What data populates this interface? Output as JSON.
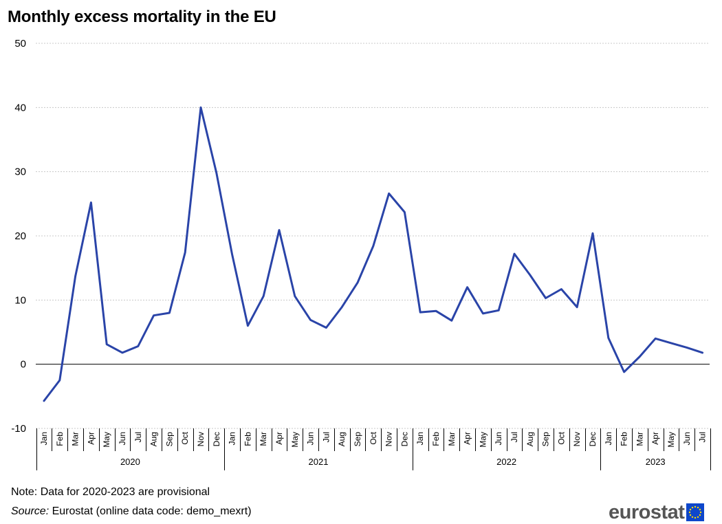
{
  "title": "Monthly excess mortality in the EU",
  "note": "Note: Data for 2020-2023 are provisional",
  "source_label": "Source:",
  "source_text": " Eurostat (online data code: demo_mexrt)",
  "logo_text": "eurostat",
  "colors": {
    "line": "#2a44a8",
    "grid": "#c8c8c8",
    "axis": "#000000",
    "eu_flag": "#0e47cb",
    "eu_stars": "#ffdd00"
  },
  "chart_data": {
    "type": "line",
    "title": "Monthly excess mortality in the EU",
    "ylim": [
      -10,
      50
    ],
    "yticks": [
      50,
      40,
      30,
      20,
      10,
      0,
      -10
    ],
    "grid": true,
    "categories": [
      "Jan",
      "Feb",
      "Mar",
      "Apr",
      "May",
      "Jun",
      "Jul",
      "Aug",
      "Sep",
      "Oct",
      "Nov",
      "Dec",
      "Jan",
      "Feb",
      "Mar",
      "Apr",
      "May",
      "Jun",
      "Jul",
      "Aug",
      "Sep",
      "Oct",
      "Nov",
      "Dec",
      "Jan",
      "Feb",
      "Mar",
      "Apr",
      "May",
      "Jun",
      "Jul",
      "Aug",
      "Sep",
      "Oct",
      "Nov",
      "Dec",
      "Jan",
      "Feb",
      "Mar",
      "Apr",
      "May",
      "Jun",
      "Jul"
    ],
    "years": [
      {
        "label": "2020",
        "months": 12
      },
      {
        "label": "2021",
        "months": 12
      },
      {
        "label": "2022",
        "months": 12
      },
      {
        "label": "2023",
        "months": 7
      }
    ],
    "series": [
      {
        "values": [
          -5.7,
          -2.5,
          13.7,
          25.2,
          3.1,
          1.8,
          2.8,
          7.6,
          8.0,
          17.4,
          40.0,
          29.8,
          17.1,
          6.0,
          10.6,
          20.9,
          10.6,
          6.9,
          5.7,
          8.9,
          12.7,
          18.4,
          26.6,
          23.7,
          8.1,
          8.3,
          6.8,
          12.0,
          7.9,
          8.4,
          17.2,
          13.9,
          10.3,
          11.7,
          8.9,
          20.4,
          4.1,
          -1.2,
          1.2,
          4.0,
          3.3,
          2.6,
          1.8
        ]
      }
    ]
  }
}
